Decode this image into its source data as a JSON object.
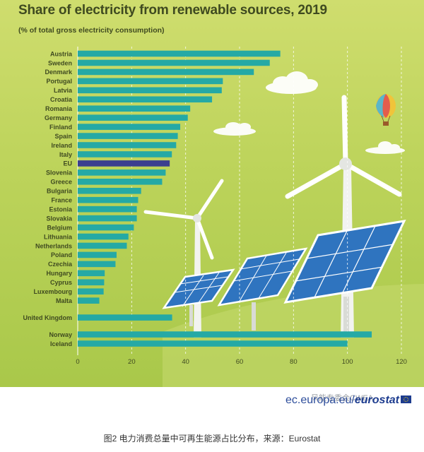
{
  "chart_data": {
    "type": "bar",
    "orientation": "horizontal",
    "title": "Share of electricity from renewable sources, 2019",
    "subtitle": "(% of total gross electricity consumption)",
    "xlim": [
      0,
      120
    ],
    "xticks": [
      0,
      20,
      40,
      60,
      80,
      100,
      120
    ],
    "grid": "vertical",
    "legend": "none",
    "colors": {
      "bar": "#25a9a5",
      "highlight": "#3b3f8f"
    },
    "groups": [
      {
        "categories": [
          "Austria",
          "Sweden",
          "Denmark",
          "Portugal",
          "Latvia",
          "Croatia",
          "Romania",
          "Germany",
          "Finland",
          "Spain",
          "Ireland",
          "Italy",
          "EU",
          "Slovenia",
          "Greece",
          "Bulgaria",
          "France",
          "Estonia",
          "Slovakia",
          "Belgium",
          "Lithuania",
          "Netherlands",
          "Poland",
          "Czechia",
          "Hungary",
          "Cyprus",
          "Luxembourg",
          "Malta"
        ],
        "values": [
          75.1,
          71.2,
          65.3,
          53.8,
          53.4,
          49.8,
          41.7,
          40.8,
          38.0,
          37.1,
          36.5,
          34.9,
          34.1,
          32.6,
          31.3,
          23.5,
          22.4,
          21.9,
          21.9,
          20.8,
          18.8,
          18.2,
          14.4,
          14.0,
          10.0,
          9.8,
          9.6,
          8.0
        ],
        "highlight": "EU"
      },
      {
        "categories": [
          "United Kingdom"
        ],
        "values": [
          35.0
        ]
      },
      {
        "categories": [
          "Norway",
          "Iceland"
        ],
        "values": [
          109.0,
          100.0
        ]
      }
    ]
  },
  "footer": {
    "source_prefix": "ec.europa.eu/",
    "source_brand": "eurostat",
    "watermark": "风能专委会CWEA",
    "caption": "图2 电力消费总量中可再生能源占比分布，来源：Eurostat"
  }
}
